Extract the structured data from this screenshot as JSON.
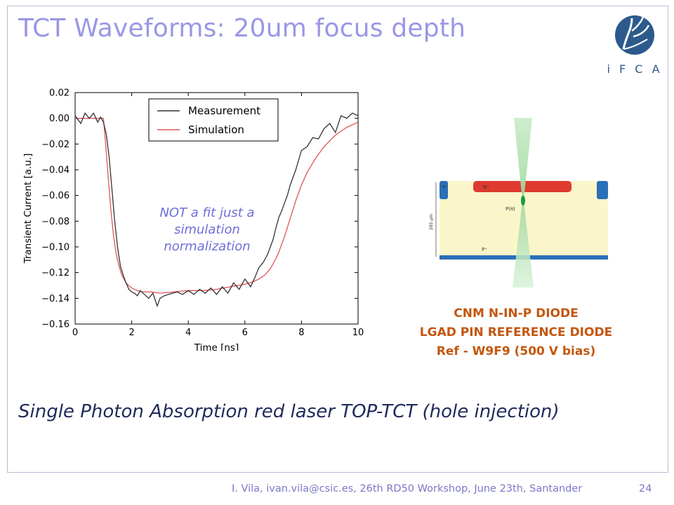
{
  "slide": {
    "title": "TCT Waveforms:  20um focus depth",
    "note": "NOT a fit just a simulation normalization",
    "caption_lines": [
      "CNM N-IN-P DIODE",
      "LGAD PIN REFERENCE DIODE",
      "Ref - W9F9  (500 V bias)"
    ],
    "subtitle": "Single Photon Absorption  red laser  TOP-TCT (hole injection)",
    "footer": "I. Vila, ivan.vila@csic.es, 26th RD50 Workshop, June 23th, Santander",
    "page_number": "24",
    "logo_text": "i F C A",
    "colors": {
      "title": "#9a97e6",
      "caption": "#c4560e",
      "subtitle": "#1f2a5c",
      "note": "#6f6fd8"
    }
  },
  "diagram": {
    "labels": {
      "top_left": "P⁺",
      "top_center": "N⁺",
      "middle": "P(π)",
      "bottom": "P⁺",
      "thickness": "285 μm"
    }
  },
  "chart_data": {
    "type": "line",
    "xlabel": "Time [ns]",
    "ylabel": "Transient Current [a.u.]",
    "xlim": [
      0,
      10
    ],
    "ylim": [
      -0.16,
      0.02
    ],
    "xticks": [
      0,
      2,
      4,
      6,
      8,
      10
    ],
    "yticks": [
      0.02,
      0.0,
      -0.02,
      -0.04,
      -0.06,
      -0.08,
      -0.1,
      -0.12,
      -0.14,
      -0.16
    ],
    "ytick_labels": [
      "0.02",
      "0.00",
      "−0.02",
      "−0.04",
      "−0.06",
      "−0.08",
      "−0.10",
      "−0.12",
      "−0.14",
      "−0.16"
    ],
    "legend_position": "top-center",
    "grid": false,
    "series": [
      {
        "name": "Measurement",
        "color": "#333333",
        "x": [
          0.0,
          0.2,
          0.35,
          0.5,
          0.65,
          0.8,
          0.9,
          1.0,
          1.1,
          1.2,
          1.3,
          1.4,
          1.5,
          1.6,
          1.7,
          1.8,
          1.9,
          2.0,
          2.1,
          2.2,
          2.3,
          2.45,
          2.6,
          2.75,
          2.9,
          3.0,
          3.15,
          3.3,
          3.45,
          3.6,
          3.8,
          4.0,
          4.2,
          4.4,
          4.6,
          4.8,
          5.0,
          5.2,
          5.4,
          5.6,
          5.8,
          6.0,
          6.2,
          6.35,
          6.5,
          6.65,
          6.8,
          6.9,
          7.0,
          7.1,
          7.2,
          7.3,
          7.4,
          7.5,
          7.6,
          7.8,
          8.0,
          8.2,
          8.4,
          8.6,
          8.8,
          9.0,
          9.2,
          9.4,
          9.6,
          9.8,
          10.0
        ],
        "y": [
          0.002,
          -0.004,
          0.004,
          0.0,
          0.004,
          -0.003,
          0.001,
          -0.003,
          -0.012,
          -0.03,
          -0.055,
          -0.08,
          -0.1,
          -0.115,
          -0.122,
          -0.128,
          -0.133,
          -0.135,
          -0.136,
          -0.138,
          -0.134,
          -0.137,
          -0.14,
          -0.136,
          -0.146,
          -0.14,
          -0.138,
          -0.137,
          -0.136,
          -0.135,
          -0.137,
          -0.134,
          -0.137,
          -0.133,
          -0.136,
          -0.132,
          -0.137,
          -0.131,
          -0.136,
          -0.128,
          -0.133,
          -0.125,
          -0.131,
          -0.124,
          -0.116,
          -0.112,
          -0.106,
          -0.1,
          -0.094,
          -0.085,
          -0.077,
          -0.072,
          -0.066,
          -0.06,
          -0.052,
          -0.04,
          -0.025,
          -0.022,
          -0.015,
          -0.016,
          -0.008,
          -0.004,
          -0.011,
          0.002,
          0.0,
          0.004,
          0.002
        ]
      },
      {
        "name": "Simulation",
        "color": "#e05555",
        "x": [
          0.0,
          0.5,
          0.9,
          1.0,
          1.05,
          1.15,
          1.25,
          1.35,
          1.45,
          1.55,
          1.65,
          1.8,
          2.0,
          2.2,
          2.4,
          2.7,
          3.0,
          3.5,
          4.0,
          4.5,
          5.0,
          5.5,
          6.0,
          6.3,
          6.5,
          6.7,
          6.9,
          7.0,
          7.1,
          7.2,
          7.3,
          7.4,
          7.5,
          7.6,
          7.7,
          7.8,
          8.0,
          8.2,
          8.5,
          8.8,
          9.2,
          9.6,
          10.0
        ],
        "y": [
          0.0,
          0.0,
          0.0,
          0.0,
          -0.012,
          -0.04,
          -0.068,
          -0.09,
          -0.105,
          -0.115,
          -0.122,
          -0.128,
          -0.132,
          -0.134,
          -0.135,
          -0.135,
          -0.136,
          -0.135,
          -0.134,
          -0.134,
          -0.133,
          -0.131,
          -0.129,
          -0.127,
          -0.125,
          -0.122,
          -0.117,
          -0.113,
          -0.109,
          -0.104,
          -0.098,
          -0.092,
          -0.085,
          -0.078,
          -0.071,
          -0.064,
          -0.052,
          -0.042,
          -0.031,
          -0.022,
          -0.013,
          -0.007,
          -0.003
        ]
      }
    ]
  }
}
